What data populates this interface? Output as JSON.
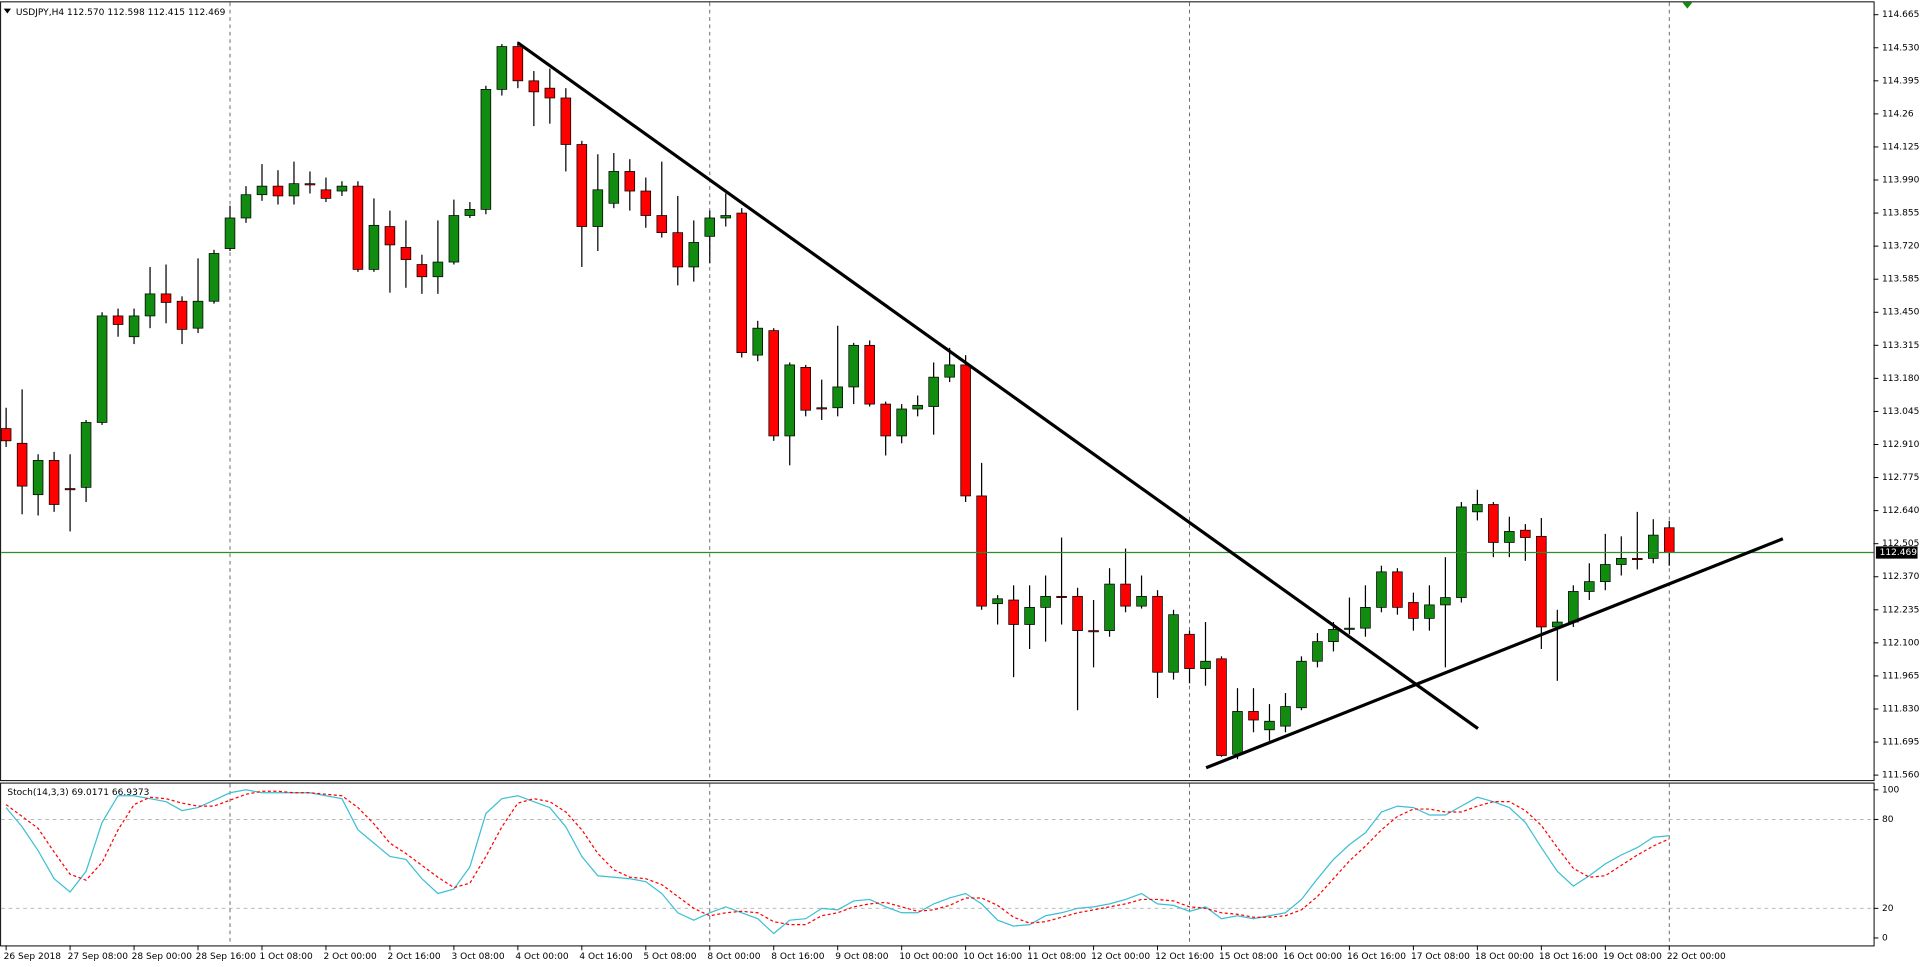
{
  "chart_data": {
    "type": "candlestick",
    "title": "USDJPY,H4",
    "last_open_label": "112.570",
    "up_color": "#118c11",
    "down_color": "#ff0000",
    "last_price_color": "#2e8b2e",
    "grid": true,
    "categories": [
      "26 Sep 2018",
      null,
      null,
      null,
      "27 Sep 08:00",
      null,
      null,
      null,
      "28 Sep 00:00",
      null,
      null,
      null,
      "28 Sep 16:00",
      null,
      null,
      null,
      "1 Oct 08:00",
      null,
      null,
      null,
      "2 Oct 00:00",
      null,
      null,
      null,
      "2 Oct 16:00",
      null,
      null,
      null,
      "3 Oct 08:00",
      null,
      null,
      null,
      "4 Oct 00:00",
      null,
      null,
      null,
      "4 Oct 16:00",
      null,
      null,
      null,
      "5 Oct 08:00",
      null,
      null,
      null,
      "8 Oct 00:00",
      null,
      null,
      null,
      "8 Oct 16:00",
      null,
      null,
      null,
      "9 Oct 08:00",
      null,
      null,
      null,
      "10 Oct 00:00",
      null,
      null,
      null,
      "10 Oct 16:00",
      null,
      null,
      null,
      "11 Oct 08:00",
      null,
      null,
      null,
      "12 Oct 00:00",
      null,
      null,
      null,
      "12 Oct 16:00",
      null,
      null,
      null,
      "15 Oct 08:00",
      null,
      null,
      null,
      "16 Oct 00:00",
      null,
      null,
      null,
      "16 Oct 16:00",
      null,
      null,
      null,
      "17 Oct 08:00",
      null,
      null,
      null,
      "18 Oct 00:00",
      null,
      null,
      null,
      "18 Oct 16:00",
      null,
      null,
      null,
      "19 Oct 08:00",
      null,
      null,
      null,
      "22 Oct 00:00"
    ],
    "open": [
      112.975,
      112.915,
      112.705,
      112.845,
      112.73,
      112.735,
      113.0,
      113.435,
      113.35,
      113.435,
      113.525,
      113.495,
      113.385,
      113.495,
      113.71,
      113.835,
      113.93,
      113.965,
      113.925,
      113.975,
      113.95,
      113.945,
      113.965,
      113.625,
      113.8,
      113.715,
      113.645,
      113.595,
      113.655,
      113.845,
      113.87,
      114.36,
      114.535,
      114.395,
      114.365,
      114.325,
      114.135,
      113.8,
      113.895,
      114.025,
      113.945,
      113.845,
      113.775,
      113.635,
      113.76,
      113.835,
      113.855,
      113.275,
      113.375,
      112.945,
      113.225,
      113.06,
      113.06,
      113.145,
      113.315,
      113.075,
      112.945,
      113.055,
      113.065,
      113.185,
      113.235,
      112.7,
      112.26,
      112.275,
      112.175,
      112.245,
      112.29,
      112.29,
      112.15,
      112.15,
      112.34,
      112.25,
      112.29,
      111.98,
      112.135,
      111.995,
      112.035,
      111.645,
      111.82,
      111.745,
      111.76,
      111.835,
      112.025,
      112.105,
      112.155,
      112.16,
      112.245,
      112.39,
      112.265,
      112.2,
      112.255,
      112.285,
      112.635,
      112.665,
      112.51,
      112.56,
      112.535,
      112.165,
      112.185,
      112.31,
      112.35,
      112.42,
      112.445,
      112.445,
      112.57
    ],
    "high": [
      113.06,
      113.135,
      112.87,
      112.88,
      112.87,
      113.01,
      113.45,
      113.465,
      113.465,
      113.635,
      113.645,
      113.515,
      113.67,
      113.705,
      113.885,
      113.965,
      114.055,
      114.03,
      114.065,
      114.025,
      114.0,
      113.985,
      113.985,
      113.915,
      113.865,
      113.825,
      113.685,
      113.825,
      113.91,
      113.9,
      114.375,
      114.545,
      114.555,
      114.435,
      114.445,
      114.365,
      114.15,
      114.095,
      114.1,
      114.075,
      114.0,
      114.065,
      113.925,
      113.825,
      113.865,
      113.935,
      113.875,
      113.415,
      113.385,
      113.245,
      113.235,
      113.175,
      113.395,
      113.325,
      113.335,
      113.085,
      113.075,
      113.11,
      113.245,
      113.305,
      113.275,
      112.835,
      112.295,
      112.335,
      112.335,
      112.375,
      112.53,
      112.325,
      112.275,
      112.405,
      112.485,
      112.375,
      112.315,
      112.235,
      112.15,
      112.185,
      112.045,
      111.915,
      111.915,
      111.85,
      111.895,
      112.045,
      112.14,
      112.185,
      112.285,
      112.335,
      112.415,
      112.405,
      112.305,
      112.335,
      112.45,
      112.675,
      112.725,
      112.675,
      112.615,
      112.585,
      112.61,
      112.235,
      112.335,
      112.425,
      112.545,
      112.535,
      112.635,
      112.605,
      112.598
    ],
    "low": [
      112.9,
      112.625,
      112.62,
      112.635,
      112.555,
      112.675,
      112.99,
      113.35,
      113.32,
      113.385,
      113.405,
      113.32,
      113.365,
      113.485,
      113.7,
      113.815,
      113.905,
      113.89,
      113.89,
      113.935,
      113.9,
      113.925,
      113.615,
      113.615,
      113.53,
      113.55,
      113.525,
      113.525,
      113.645,
      113.835,
      113.85,
      114.335,
      114.365,
      114.21,
      114.22,
      114.025,
      113.635,
      113.7,
      113.875,
      113.865,
      113.795,
      113.755,
      113.56,
      113.575,
      113.65,
      113.8,
      113.265,
      113.25,
      112.925,
      112.825,
      113.025,
      113.01,
      113.025,
      113.075,
      113.065,
      112.865,
      112.915,
      113.025,
      112.95,
      113.165,
      112.675,
      112.235,
      112.175,
      111.96,
      112.075,
      112.105,
      112.175,
      111.825,
      112.0,
      112.125,
      112.225,
      112.24,
      111.875,
      111.95,
      111.935,
      111.925,
      111.635,
      111.625,
      111.735,
      111.7,
      111.735,
      111.825,
      112.0,
      112.065,
      112.135,
      112.125,
      112.225,
      112.215,
      112.15,
      112.15,
      112.0,
      112.265,
      112.6,
      112.45,
      112.45,
      112.435,
      112.075,
      111.945,
      112.165,
      112.275,
      112.315,
      112.375,
      112.4,
      112.425,
      112.415
    ],
    "close": [
      112.925,
      112.74,
      112.845,
      112.665,
      112.725,
      113.0,
      113.435,
      113.4,
      113.435,
      113.525,
      113.49,
      113.38,
      113.495,
      113.69,
      113.835,
      113.93,
      113.965,
      113.925,
      113.975,
      113.97,
      113.915,
      113.965,
      113.625,
      113.805,
      113.725,
      113.665,
      113.595,
      113.655,
      113.845,
      113.87,
      114.36,
      114.535,
      114.395,
      114.35,
      114.325,
      114.135,
      113.8,
      113.95,
      114.025,
      113.945,
      113.845,
      113.775,
      113.635,
      113.735,
      113.835,
      113.845,
      113.285,
      113.385,
      112.945,
      113.235,
      113.05,
      113.055,
      113.145,
      113.315,
      113.075,
      112.945,
      113.055,
      113.07,
      113.185,
      113.235,
      112.7,
      112.25,
      112.28,
      112.175,
      112.245,
      112.29,
      112.285,
      112.15,
      112.145,
      112.34,
      112.25,
      112.29,
      111.98,
      112.215,
      111.995,
      112.025,
      111.64,
      111.82,
      111.785,
      111.78,
      111.84,
      112.025,
      112.105,
      112.155,
      112.16,
      112.245,
      112.39,
      112.245,
      112.2,
      112.255,
      112.285,
      112.655,
      112.665,
      112.51,
      112.555,
      112.53,
      112.165,
      112.185,
      112.31,
      112.35,
      112.42,
      112.445,
      112.44,
      112.54,
      112.469
    ],
    "ylim": [
      111.545,
      114.705
    ],
    "yticks": [
      114.665,
      {
        "value": 114.53,
        "label": "114.530"
      },
      114.395,
      114.26,
      114.125,
      {
        "value": 113.99,
        "label": "113.990"
      },
      113.855,
      {
        "value": 113.72,
        "label": "113.720"
      },
      113.585,
      {
        "value": 113.45,
        "label": "113.450"
      },
      113.315,
      {
        "value": 113.18,
        "label": "113.180"
      },
      113.045,
      {
        "value": 112.91,
        "label": "112.910"
      },
      112.775,
      {
        "value": 112.64,
        "label": "112.640"
      },
      112.505,
      {
        "value": 112.37,
        "label": "112.370"
      },
      112.235,
      {
        "value": 112.1,
        "label": "112.100"
      },
      111.965,
      {
        "value": 111.83,
        "label": "111.830"
      },
      111.695,
      {
        "value": 111.56,
        "label": "111.560"
      }
    ],
    "indicator": {
      "title": "Stoch(14,3,3)",
      "ylim": [
        0,
        100
      ],
      "yticks": [
        100,
        80,
        20,
        0
      ],
      "series": [
        {
          "color": "#3cbfd4",
          "dashed": false,
          "values": [
            88,
            75,
            59,
            40,
            31,
            45,
            78,
            96,
            96,
            94,
            92,
            86,
            88,
            93,
            98,
            100,
            98,
            98,
            98,
            98,
            96,
            94,
            73,
            64,
            55,
            53,
            40,
            30,
            33,
            48,
            84,
            94,
            96,
            92,
            88,
            75,
            55,
            42,
            41,
            40,
            38,
            30,
            17,
            12,
            17,
            21,
            17,
            13,
            3,
            12,
            13,
            20,
            19,
            25,
            26,
            21,
            17,
            17,
            23,
            27,
            30,
            23,
            12,
            8,
            9,
            15,
            17,
            20,
            21,
            23,
            26,
            30,
            23,
            22,
            18,
            21,
            13,
            15,
            13,
            15,
            17,
            26,
            40,
            53,
            63,
            71,
            85,
            89,
            88,
            83,
            83,
            89,
            95,
            92,
            88,
            78,
            61,
            45,
            35,
            42,
            50,
            56,
            61,
            68,
            69.0171
          ]
        },
        {
          "color": "#ff0000",
          "dashed": true,
          "values": [
            90,
            82,
            74,
            58,
            43,
            39,
            51,
            73,
            90,
            95,
            94,
            91,
            89,
            89,
            93,
            97,
            99,
            99,
            98,
            98,
            97,
            96,
            88,
            77,
            64,
            57,
            49,
            41,
            34,
            37,
            55,
            75,
            91,
            94,
            92,
            85,
            73,
            57,
            46,
            41,
            40,
            36,
            28,
            20,
            15,
            17,
            18,
            17,
            11,
            9,
            9,
            15,
            17,
            21,
            23,
            24,
            21,
            18,
            19,
            22,
            27,
            27,
            22,
            14,
            10,
            11,
            14,
            17,
            19,
            21,
            23,
            26,
            26,
            25,
            21,
            20,
            17,
            16,
            14,
            14,
            15,
            19,
            28,
            40,
            52,
            62,
            73,
            82,
            87,
            87,
            85,
            85,
            89,
            92,
            92,
            86,
            76,
            61,
            47,
            41,
            42,
            49,
            56,
            62,
            66.9373
          ]
        }
      ]
    }
  }
}
